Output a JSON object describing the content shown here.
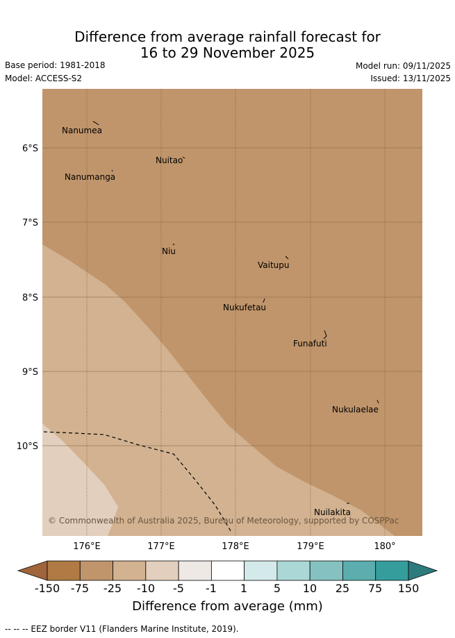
{
  "title_line1": "Difference from average rainfall forecast for",
  "title_line2": "16 to 29 November 2025",
  "base_period": "Base period: 1981-2018",
  "model": "Model: ACCESS-S2",
  "model_run": "Model run: 09/11/2025",
  "issued": "Issued: 13/11/2025",
  "lat_labels": [
    "6°S",
    "7°S",
    "8°S",
    "9°S",
    "10°S"
  ],
  "lon_labels": [
    "176°E",
    "177°E",
    "178°E",
    "179°E",
    "180°"
  ],
  "islands": {
    "nanumea": "Nanumea",
    "nuitao": "Nuitao",
    "nanumanga": "Nanumanga",
    "niu": "Niu",
    "vaitupu": "Vaitupu",
    "nukufetau": "Nukufetau",
    "funafuti": "Funafuti",
    "nukulaelae": "Nukulaelae",
    "nuilakita": "Nuilakita"
  },
  "copyright": "© Commonwealth of Australia 2025, Bureau of Meteorology, supported by COSPPac",
  "colorbar": {
    "labels": [
      "-150",
      "-75",
      "-25",
      "-10",
      "-5",
      "-1",
      "1",
      "5",
      "10",
      "25",
      "75",
      "150"
    ],
    "colors": [
      "#b07a44",
      "#c0956b",
      "#d2b290",
      "#e3cfbd",
      "#efe9e6",
      "#ffffff",
      "#d4eaea",
      "#acd7d7",
      "#85c1c1",
      "#5cadad",
      "#369d9d"
    ],
    "extend_low": "#a0653a",
    "extend_high": "#2e7b7e",
    "title": "Difference from average (mm)"
  },
  "legend_footnote": "-- -- -- EEZ border V11 (Flanders Marine Institute, 2019).",
  "region_colors": {
    "dry_strong": "#c0956b",
    "dry_moderate": "#d2b290",
    "dry_light": "#e3cfbd"
  }
}
